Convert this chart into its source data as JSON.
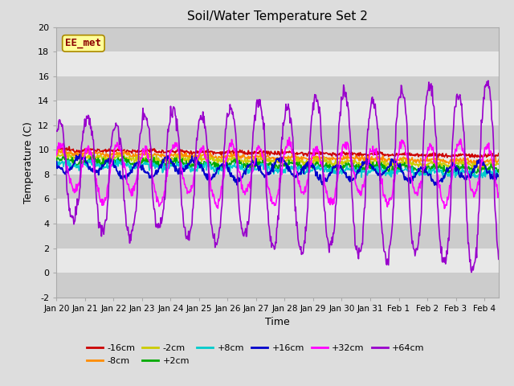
{
  "title": "Soil/Water Temperature Set 2",
  "xlabel": "Time",
  "ylabel": "Temperature (C)",
  "ylim": [
    -2,
    20
  ],
  "yticks": [
    -2,
    0,
    2,
    4,
    6,
    8,
    10,
    12,
    14,
    16,
    18,
    20
  ],
  "x_tick_labels": [
    "Jan 20",
    "Jan 21",
    "Jan 22",
    "Jan 23",
    "Jan 24",
    "Jan 25",
    "Jan 26",
    "Jan 27",
    "Jan 28",
    "Jan 29",
    "Jan 30",
    "Jan 31",
    "Feb 1",
    "Feb 2",
    "Feb 3",
    "Feb 4"
  ],
  "annotation_text": "EE_met",
  "annotation_color": "#8B0000",
  "annotation_bg": "#FFFF99",
  "annotation_border": "#AA8800",
  "series": [
    {
      "label": "-16cm",
      "color": "#CC0000"
    },
    {
      "label": "-8cm",
      "color": "#FF8C00"
    },
    {
      "label": "-2cm",
      "color": "#CCCC00"
    },
    {
      "label": "+2cm",
      "color": "#00AA00"
    },
    {
      "label": "+8cm",
      "color": "#00CCCC"
    },
    {
      "label": "+16cm",
      "color": "#0000CC"
    },
    {
      "label": "+32cm",
      "color": "#FF00FF"
    },
    {
      "label": "+64cm",
      "color": "#9900CC"
    }
  ],
  "fig_bg": "#DDDDDD",
  "plot_bg": "#DDDDDD",
  "stripe_colors": [
    "#CCCCCC",
    "#E8E8E8"
  ]
}
